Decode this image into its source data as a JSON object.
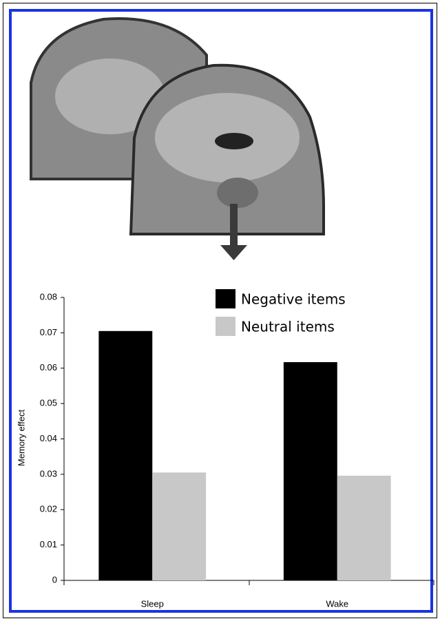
{
  "chart_data": {
    "type": "bar",
    "categories": [
      "Sleep",
      "Wake"
    ],
    "y_label": "Memory effect",
    "series": [
      {
        "name": "Negative items",
        "color": "#000000",
        "values": [
          0.0705,
          0.0617
        ]
      },
      {
        "name": "Neutral items",
        "color": "#c8c8c8",
        "values": [
          0.0305,
          0.0296
        ]
      }
    ],
    "ylim": [
      0,
      0.08
    ],
    "yticks": [
      0,
      0.01,
      0.02,
      0.03,
      0.04,
      0.05,
      0.06,
      0.07,
      0.08
    ],
    "grid": false
  }
}
